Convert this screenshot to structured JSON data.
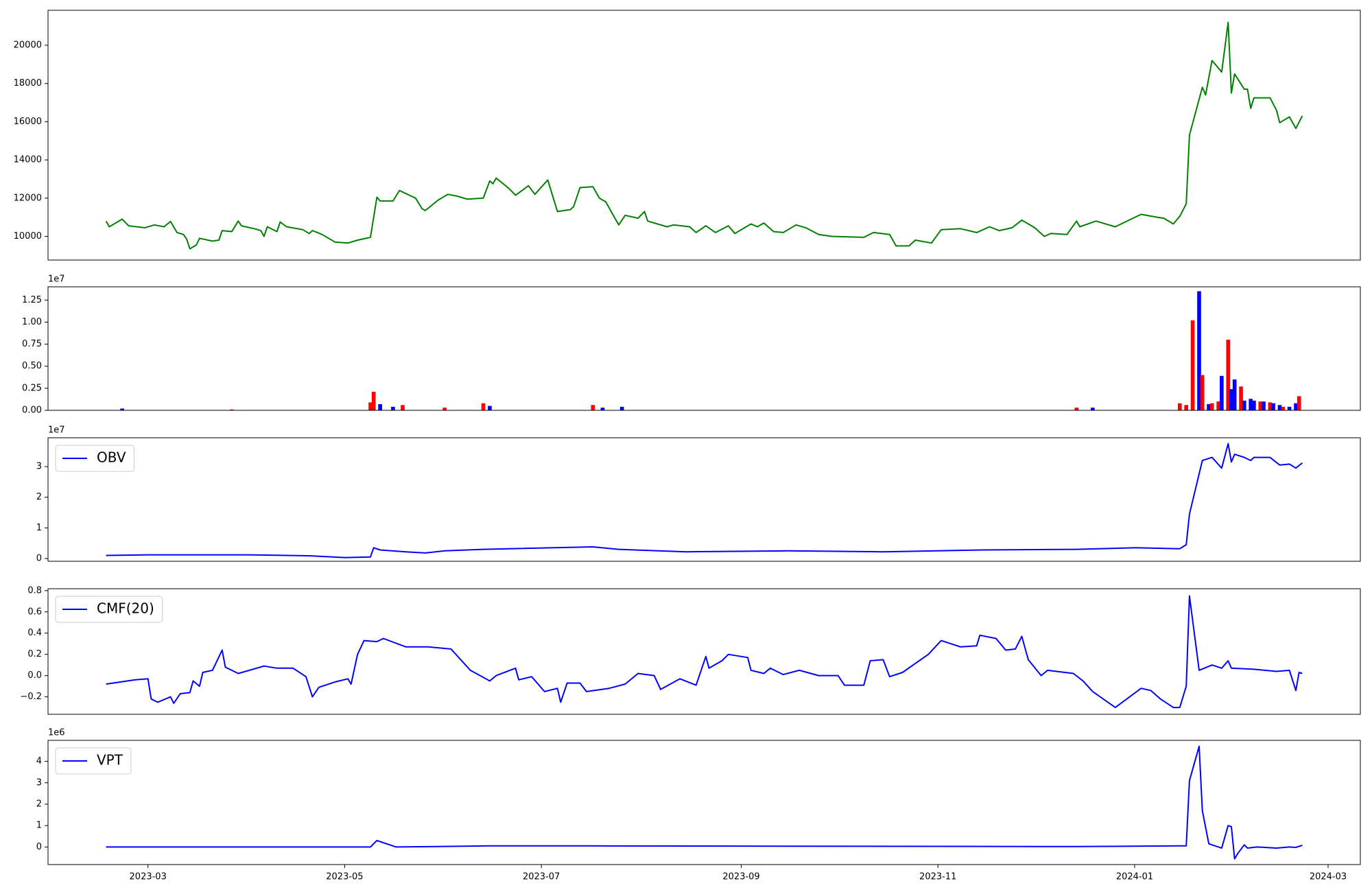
{
  "chart_data": [
    {
      "type": "line",
      "xlim": [
        "2023-01-29",
        "2024-03-11"
      ],
      "ylim": [
        8760,
        21830
      ],
      "yticks": [
        10000,
        12000,
        14000,
        16000,
        18000,
        20000
      ],
      "series": [
        {
          "color": "#008000",
          "x": [
            "2023-02-16",
            "2023-02-17",
            "2023-02-21",
            "2023-02-23",
            "2023-02-28",
            "2023-03-03",
            "2023-03-06",
            "2023-03-08",
            "2023-03-10",
            "2023-03-12",
            "2023-03-13",
            "2023-03-14",
            "2023-03-16",
            "2023-03-17",
            "2023-03-21",
            "2023-03-23",
            "2023-03-24",
            "2023-03-27",
            "2023-03-29",
            "2023-03-30",
            "2023-04-03",
            "2023-04-05",
            "2023-04-06",
            "2023-04-07",
            "2023-04-10",
            "2023-04-11",
            "2023-04-13",
            "2023-04-18",
            "2023-04-20",
            "2023-04-21",
            "2023-04-24",
            "2023-04-28",
            "2023-05-02",
            "2023-05-05",
            "2023-05-09",
            "2023-05-11",
            "2023-05-12",
            "2023-05-16",
            "2023-05-18",
            "2023-05-23",
            "2023-05-25",
            "2023-05-26",
            "2023-05-30",
            "2023-06-02",
            "2023-06-05",
            "2023-06-08",
            "2023-06-13",
            "2023-06-15",
            "2023-06-16",
            "2023-06-17",
            "2023-06-21",
            "2023-06-23",
            "2023-06-27",
            "2023-06-29",
            "2023-07-03",
            "2023-07-06",
            "2023-07-10",
            "2023-07-11",
            "2023-07-13",
            "2023-07-17",
            "2023-07-19",
            "2023-07-21",
            "2023-07-25",
            "2023-07-27",
            "2023-07-31",
            "2023-08-02",
            "2023-08-03",
            "2023-08-09",
            "2023-08-11",
            "2023-08-16",
            "2023-08-18",
            "2023-08-21",
            "2023-08-24",
            "2023-08-28",
            "2023-08-30",
            "2023-09-04",
            "2023-09-06",
            "2023-09-08",
            "2023-09-11",
            "2023-09-14",
            "2023-09-18",
            "2023-09-21",
            "2023-09-25",
            "2023-09-29",
            "2023-10-09",
            "2023-10-12",
            "2023-10-17",
            "2023-10-19",
            "2023-10-23",
            "2023-10-25",
            "2023-10-30",
            "2023-11-02",
            "2023-11-08",
            "2023-11-13",
            "2023-11-17",
            "2023-11-20",
            "2023-11-24",
            "2023-11-27",
            "2023-12-01",
            "2023-12-04",
            "2023-12-06",
            "2023-12-11",
            "2023-12-14",
            "2023-12-15",
            "2023-12-20",
            "2023-12-26",
            "2024-01-03",
            "2024-01-08",
            "2024-01-10",
            "2024-01-13",
            "2024-01-15",
            "2024-01-17",
            "2024-01-18",
            "2024-01-22",
            "2024-01-23",
            "2024-01-25",
            "2024-01-28",
            "2024-01-30",
            "2024-01-31",
            "2024-02-01",
            "2024-02-04",
            "2024-02-05",
            "2024-02-06",
            "2024-02-07",
            "2024-02-12",
            "2024-02-14",
            "2024-02-15",
            "2024-02-18",
            "2024-02-20",
            "2024-02-22"
          ],
          "values": [
            10800,
            10500,
            10900,
            10550,
            10450,
            10600,
            10500,
            10780,
            10200,
            10100,
            9850,
            9350,
            9550,
            9900,
            9750,
            9800,
            10300,
            10250,
            10800,
            10550,
            10400,
            10300,
            10000,
            10500,
            10250,
            10750,
            10500,
            10350,
            10150,
            10300,
            10100,
            9700,
            9650,
            9800,
            9950,
            12050,
            11850,
            11850,
            12400,
            12000,
            11450,
            11350,
            11900,
            12200,
            12100,
            11950,
            12000,
            12900,
            12750,
            13050,
            12500,
            12150,
            12650,
            12200,
            12950,
            11300,
            11400,
            11550,
            12550,
            12600,
            12000,
            11800,
            10600,
            11100,
            10950,
            11300,
            10800,
            10500,
            10600,
            10500,
            10200,
            10550,
            10200,
            10550,
            10150,
            10650,
            10500,
            10700,
            10250,
            10200,
            10600,
            10450,
            10100,
            10000,
            9950,
            10200,
            10100,
            9500,
            9500,
            9800,
            9650,
            10350,
            10400,
            10200,
            10500,
            10300,
            10450,
            10850,
            10450,
            10000,
            10150,
            10100,
            10800,
            10500,
            10800,
            10500,
            11150,
            11000,
            10950,
            10650,
            11050,
            11700,
            15300,
            17800,
            17400,
            19200,
            18600,
            21200,
            17500,
            18500,
            17700,
            17700,
            16700,
            17250,
            17250,
            16600,
            15950,
            16250,
            15650,
            16300
          ]
        }
      ]
    },
    {
      "type": "bar",
      "offset_text": "1e7",
      "xlim": [
        "2023-01-29",
        "2024-03-11"
      ],
      "ylim": [
        0,
        1.4
      ],
      "yticks": [
        {
          "value": 0,
          "label": "0.00"
        },
        0.25,
        {
          "value": 0.5,
          "label": "0.50"
        },
        0.75,
        {
          "value": 1,
          "label": "1.00"
        },
        1.25
      ],
      "series": [
        {
          "x": [
            "2023-02-21",
            "2023-03-27",
            "2023-05-09",
            "2023-05-10",
            "2023-05-12",
            "2023-05-16",
            "2023-05-19",
            "2023-06-01",
            "2023-06-13",
            "2023-06-15",
            "2023-07-17",
            "2023-07-20",
            "2023-07-26",
            "2023-12-14",
            "2023-12-19",
            "2024-01-15",
            "2024-01-17",
            "2024-01-19",
            "2024-01-21",
            "2024-01-22",
            "2024-01-24",
            "2024-01-25",
            "2024-01-27",
            "2024-01-28",
            "2024-01-30",
            "2024-01-31",
            "2024-02-01",
            "2024-02-03",
            "2024-02-04",
            "2024-02-06",
            "2024-02-07",
            "2024-02-09",
            "2024-02-10",
            "2024-02-12",
            "2024-02-13",
            "2024-02-15",
            "2024-02-16",
            "2024-02-18",
            "2024-02-20",
            "2024-02-21"
          ],
          "values": [
            0.02,
            0.01,
            0.09,
            0.21,
            0.07,
            0.04,
            0.06,
            0.03,
            0.08,
            0.05,
            0.06,
            0.03,
            0.04,
            0.03,
            0.03,
            0.08,
            0.06,
            1.02,
            1.35,
            0.4,
            0.07,
            0.08,
            0.1,
            0.39,
            0.8,
            0.24,
            0.35,
            0.27,
            0.11,
            0.13,
            0.11,
            0.1,
            0.1,
            0.09,
            0.08,
            0.06,
            0.04,
            0.04,
            0.08,
            0.16
          ],
          "colors": [
            "#0000ff",
            "#ff0000",
            "#ff0000",
            "#ff0000",
            "#0000ff",
            "#0000ff",
            "#ff0000",
            "#ff0000",
            "#ff0000",
            "#0000ff",
            "#ff0000",
            "#0000ff",
            "#0000ff",
            "#ff0000",
            "#0000ff",
            "#ff0000",
            "#ff0000",
            "#ff0000",
            "#0000ff",
            "#ff0000",
            "#0000ff",
            "#ff0000",
            "#ff0000",
            "#0000ff",
            "#ff0000",
            "#0000ff",
            "#0000ff",
            "#ff0000",
            "#0000ff",
            "#0000ff",
            "#0000ff",
            "#ff0000",
            "#0000ff",
            "#ff0000",
            "#0000ff",
            "#0000ff",
            "#ff0000",
            "#0000ff",
            "#0000ff",
            "#ff0000"
          ]
        }
      ]
    },
    {
      "type": "line",
      "offset_text": "1e7",
      "legend": "upper left",
      "xlim": [
        "2023-01-29",
        "2024-03-11"
      ],
      "ylim": [
        -0.09,
        3.94
      ],
      "yticks": [
        0,
        1,
        2,
        3
      ],
      "series": [
        {
          "name": "OBV",
          "color": "#0000ff",
          "x": [
            "2023-02-16",
            "2023-03-01",
            "2023-04-01",
            "2023-04-20",
            "2023-05-01",
            "2023-05-09",
            "2023-05-10",
            "2023-05-12",
            "2023-05-20",
            "2023-05-26",
            "2023-06-01",
            "2023-06-13",
            "2023-07-17",
            "2023-07-25",
            "2023-08-15",
            "2023-09-15",
            "2023-10-15",
            "2023-11-15",
            "2023-12-14",
            "2024-01-01",
            "2024-01-15",
            "2024-01-17",
            "2024-01-18",
            "2024-01-22",
            "2024-01-25",
            "2024-01-28",
            "2024-01-30",
            "2024-01-31",
            "2024-02-01",
            "2024-02-04",
            "2024-02-06",
            "2024-02-07",
            "2024-02-12",
            "2024-02-15",
            "2024-02-18",
            "2024-02-20",
            "2024-02-22"
          ],
          "values": [
            0.1,
            0.12,
            0.12,
            0.09,
            0.03,
            0.05,
            0.35,
            0.28,
            0.22,
            0.18,
            0.25,
            0.3,
            0.38,
            0.3,
            0.22,
            0.25,
            0.22,
            0.28,
            0.3,
            0.35,
            0.32,
            0.45,
            1.45,
            3.2,
            3.3,
            2.95,
            3.75,
            3.15,
            3.4,
            3.3,
            3.2,
            3.3,
            3.3,
            3.05,
            3.08,
            2.95,
            3.12
          ]
        }
      ]
    },
    {
      "type": "line",
      "legend": "upper left",
      "xlim": [
        "2023-01-29",
        "2024-03-11"
      ],
      "ylim": [
        -0.364,
        0.818
      ],
      "yticks": [
        {
          "value": -0.2,
          "label": "−0.2"
        },
        {
          "value": 0,
          "label": "0.0"
        },
        0.2,
        0.4,
        0.6,
        0.8
      ],
      "series": [
        {
          "name": "CMF(20)",
          "color": "#0000ff",
          "x": [
            "2023-02-16",
            "2023-02-25",
            "2023-03-01",
            "2023-03-02",
            "2023-03-04",
            "2023-03-08",
            "2023-03-09",
            "2023-03-11",
            "2023-03-14",
            "2023-03-15",
            "2023-03-17",
            "2023-03-18",
            "2023-03-21",
            "2023-03-24",
            "2023-03-25",
            "2023-03-29",
            "2023-04-06",
            "2023-04-10",
            "2023-04-15",
            "2023-04-19",
            "2023-04-21",
            "2023-04-23",
            "2023-04-28",
            "2023-05-02",
            "2023-05-03",
            "2023-05-05",
            "2023-05-07",
            "2023-05-11",
            "2023-05-13",
            "2023-05-20",
            "2023-05-27",
            "2023-06-03",
            "2023-06-09",
            "2023-06-15",
            "2023-06-17",
            "2023-06-23",
            "2023-06-24",
            "2023-06-28",
            "2023-07-02",
            "2023-07-06",
            "2023-07-07",
            "2023-07-09",
            "2023-07-13",
            "2023-07-15",
            "2023-07-22",
            "2023-07-27",
            "2023-07-31",
            "2023-08-05",
            "2023-08-07",
            "2023-08-13",
            "2023-08-18",
            "2023-08-21",
            "2023-08-22",
            "2023-08-26",
            "2023-08-28",
            "2023-09-03",
            "2023-09-04",
            "2023-09-08",
            "2023-09-10",
            "2023-09-14",
            "2023-09-19",
            "2023-09-25",
            "2023-10-01",
            "2023-10-03",
            "2023-10-09",
            "2023-10-11",
            "2023-10-15",
            "2023-10-17",
            "2023-10-21",
            "2023-10-29",
            "2023-11-02",
            "2023-11-08",
            "2023-11-13",
            "2023-11-14",
            "2023-11-19",
            "2023-11-22",
            "2023-11-25",
            "2023-11-27",
            "2023-11-29",
            "2023-12-03",
            "2023-12-05",
            "2023-12-13",
            "2023-12-16",
            "2023-12-19",
            "2023-12-26",
            "2024-01-03",
            "2024-01-06",
            "2024-01-09",
            "2024-01-13",
            "2024-01-15",
            "2024-01-17",
            "2024-01-18",
            "2024-01-21",
            "2024-01-25",
            "2024-01-28",
            "2024-01-30",
            "2024-01-31",
            "2024-02-07",
            "2024-02-14",
            "2024-02-18",
            "2024-02-20",
            "2024-02-21",
            "2024-02-22"
          ],
          "values": [
            -0.08,
            -0.04,
            -0.03,
            -0.22,
            -0.25,
            -0.2,
            -0.26,
            -0.17,
            -0.16,
            -0.05,
            -0.1,
            0.03,
            0.05,
            0.24,
            0.08,
            0.02,
            0.09,
            0.07,
            0.07,
            -0.01,
            -0.2,
            -0.11,
            -0.06,
            -0.03,
            -0.08,
            0.2,
            0.33,
            0.32,
            0.35,
            0.27,
            0.27,
            0.25,
            0.05,
            -0.05,
            0,
            0.07,
            -0.04,
            -0.01,
            -0.15,
            -0.12,
            -0.25,
            -0.07,
            -0.07,
            -0.15,
            -0.12,
            -0.08,
            0.02,
            0,
            -0.13,
            -0.03,
            -0.09,
            0.18,
            0.07,
            0.14,
            0.2,
            0.17,
            0.05,
            0.02,
            0.07,
            0.01,
            0.05,
            0,
            0,
            -0.09,
            -0.09,
            0.14,
            0.15,
            -0.01,
            0.03,
            0.2,
            0.33,
            0.27,
            0.28,
            0.38,
            0.35,
            0.24,
            0.25,
            0.37,
            0.15,
            0,
            0.05,
            0.02,
            -0.05,
            -0.15,
            -0.3,
            -0.12,
            -0.14,
            -0.22,
            -0.3,
            -0.3,
            -0.1,
            0.75,
            0.05,
            0.1,
            0.07,
            0.14,
            0.07,
            0.06,
            0.04,
            0.05,
            -0.14,
            0.03,
            0.02
          ]
        }
      ]
    },
    {
      "type": "line",
      "offset_text": "1e6",
      "legend": "upper left",
      "xlim": [
        "2023-01-29",
        "2024-03-11"
      ],
      "ylim": [
        -0.82,
        4.98
      ],
      "yticks": [
        0,
        1,
        2,
        3,
        4
      ],
      "xticks": [
        {
          "value": "2023-03-01",
          "label": "2023-03"
        },
        {
          "value": "2023-05-01",
          "label": "2023-05"
        },
        {
          "value": "2023-07-01",
          "label": "2023-07"
        },
        {
          "value": "2023-09-01",
          "label": "2023-09"
        },
        {
          "value": "2023-11-01",
          "label": "2023-11"
        },
        {
          "value": "2024-01-01",
          "label": "2024-01"
        },
        {
          "value": "2024-03-01",
          "label": "2024-03"
        }
      ],
      "series": [
        {
          "name": "VPT",
          "color": "#0000ff",
          "x": [
            "2023-02-16",
            "2023-05-09",
            "2023-05-11",
            "2023-05-17",
            "2023-06-15",
            "2023-07-17",
            "2023-12-14",
            "2024-01-15",
            "2024-01-17",
            "2024-01-18",
            "2024-01-21",
            "2024-01-22",
            "2024-01-24",
            "2024-01-25",
            "2024-01-28",
            "2024-01-30",
            "2024-01-31",
            "2024-02-01",
            "2024-02-02",
            "2024-02-04",
            "2024-02-05",
            "2024-02-08",
            "2024-02-14",
            "2024-02-18",
            "2024-02-20",
            "2024-02-22"
          ],
          "values": [
            0,
            0,
            0.3,
            0,
            0.05,
            0.05,
            0.02,
            0.05,
            0.05,
            3.1,
            4.7,
            1.7,
            0.15,
            0.1,
            -0.05,
            1,
            0.95,
            -0.55,
            -0.3,
            0.1,
            -0.05,
            0,
            -0.05,
            0,
            -0.02,
            0.08
          ]
        }
      ]
    }
  ]
}
